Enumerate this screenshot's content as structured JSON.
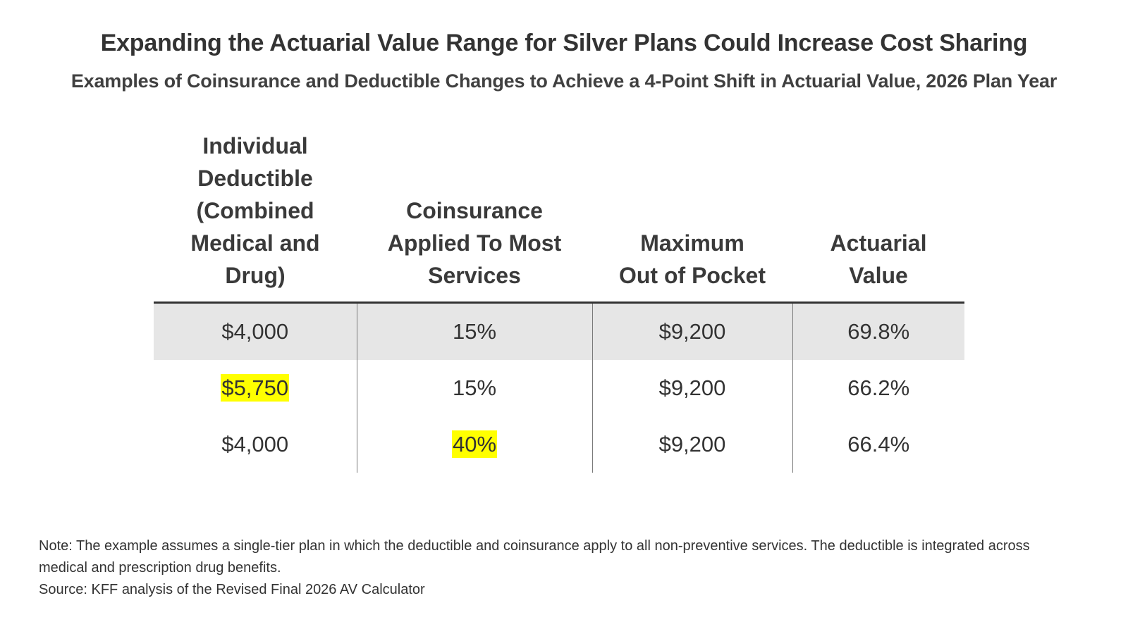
{
  "chart_data": {
    "type": "table",
    "title": "Expanding the Actuarial Value Range for Silver Plans Could Increase Cost Sharing",
    "subtitle": "Examples of Coinsurance and Deductible Changes to Achieve a 4-Point Shift in Actuarial Value, 2026 Plan Year",
    "columns": [
      "Individual\nDeductible\n(Combined\nMedical and\nDrug)",
      "Coinsurance\nApplied To Most\nServices",
      "Maximum\nOut of Pocket",
      "Actuarial\nValue"
    ],
    "rows": [
      {
        "shaded": true,
        "cells": [
          {
            "text": "$4,000",
            "highlight": false
          },
          {
            "text": "15%",
            "highlight": false
          },
          {
            "text": "$9,200",
            "highlight": false
          },
          {
            "text": "69.8%",
            "highlight": false
          }
        ]
      },
      {
        "shaded": false,
        "cells": [
          {
            "text": "$5,750",
            "highlight": true
          },
          {
            "text": "15%",
            "highlight": false
          },
          {
            "text": "$9,200",
            "highlight": false
          },
          {
            "text": "66.2%",
            "highlight": false
          }
        ]
      },
      {
        "shaded": false,
        "cells": [
          {
            "text": "$4,000",
            "highlight": false
          },
          {
            "text": "40%",
            "highlight": true
          },
          {
            "text": "$9,200",
            "highlight": false
          },
          {
            "text": "66.4%",
            "highlight": false
          }
        ]
      }
    ],
    "highlight_color": "#ffff00",
    "shade_color": "#e6e6e6"
  },
  "notes": {
    "note": "Note: The example assumes a single-tier plan in which the deductible and coinsurance apply to all non-preventive services. The deductible is integrated across medical and prescription drug benefits.",
    "source": "Source: KFF analysis of the Revised Final 2026 AV Calculator"
  }
}
